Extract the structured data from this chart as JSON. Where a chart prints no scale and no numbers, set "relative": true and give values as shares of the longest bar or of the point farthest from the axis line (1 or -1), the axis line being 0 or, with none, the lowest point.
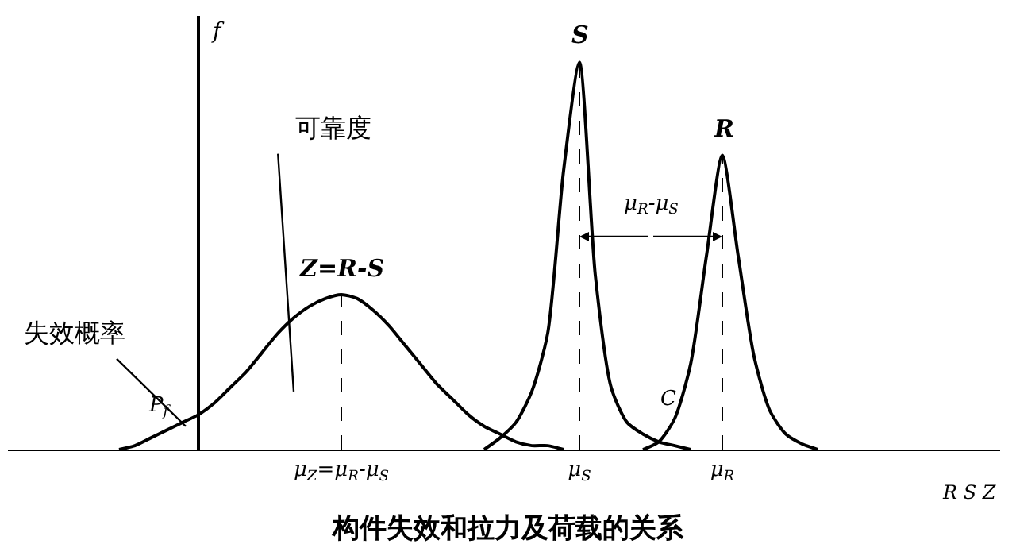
{
  "chart_data": {
    "type": "line",
    "relative": true,
    "title": "构件失效和拉力及荷载的关系",
    "xlabel": "R S Z",
    "ylabel": "f",
    "categories": [
      null,
      null,
      null,
      null,
      null,
      null,
      null,
      null,
      null,
      null,
      null,
      null,
      null,
      null,
      null,
      null,
      "μ$_{Z}$=μ$_{R}$-μ$_{S}$",
      null,
      null,
      null,
      null,
      null,
      null,
      null,
      null,
      null,
      null,
      null,
      null,
      null,
      null,
      "μ$_{S}$",
      null,
      null,
      null,
      null,
      null,
      null,
      null,
      null,
      "μ$_{R}$",
      null,
      null,
      null,
      null,
      null,
      null,
      null,
      null,
      null,
      null,
      null,
      null,
      null,
      null,
      null,
      null,
      null
    ],
    "series": [
      {
        "name": "Z=R-S",
        "color": "#000000",
        "values": [
          null,
          null,
          0,
          0.01,
          0.03,
          0.05,
          0.07,
          0.09,
          0.12,
          0.16,
          0.2,
          0.25,
          0.3,
          0.34,
          0.37,
          0.39,
          0.4,
          0.39,
          0.36,
          0.32,
          0.27,
          0.22,
          0.17,
          0.13,
          0.09,
          0.06,
          0.04,
          0.02,
          0.01,
          0.01,
          0,
          null,
          null,
          null,
          null,
          null,
          null,
          null,
          null,
          null,
          null,
          null,
          null,
          null,
          null,
          null,
          null,
          null,
          null,
          null,
          null,
          null,
          null,
          null,
          null,
          null,
          null,
          null
        ]
      },
      {
        "name": "S",
        "color": "#000000",
        "values": [
          null,
          null,
          null,
          null,
          null,
          null,
          null,
          null,
          null,
          null,
          null,
          null,
          null,
          null,
          null,
          null,
          null,
          null,
          null,
          null,
          null,
          null,
          null,
          null,
          null,
          0,
          0.03,
          0.07,
          0.15,
          0.3,
          0.72,
          1,
          0.45,
          0.16,
          0.07,
          0.04,
          0.02,
          0.01,
          0,
          null,
          null,
          null,
          null,
          null,
          null,
          null,
          null,
          null,
          null,
          null,
          null,
          null,
          null,
          null,
          null,
          null,
          null,
          null
        ]
      },
      {
        "name": "R",
        "color": "#000000",
        "values": [
          null,
          null,
          null,
          null,
          null,
          null,
          null,
          null,
          null,
          null,
          null,
          null,
          null,
          null,
          null,
          null,
          null,
          null,
          null,
          null,
          null,
          null,
          null,
          null,
          null,
          null,
          null,
          null,
          null,
          null,
          null,
          null,
          null,
          null,
          null,
          0,
          0.02,
          0.08,
          0.22,
          0.5,
          0.76,
          0.5,
          0.24,
          0.1,
          0.04,
          0.015,
          0,
          null,
          null,
          null,
          null,
          null,
          null,
          null,
          null,
          null,
          null,
          null
        ]
      }
    ],
    "ref_lines": [
      {
        "axis": "x",
        "value": "μ$_{Z}$=μ$_{R}$-μ$_{S}$",
        "line_style": "dashed",
        "color": "#000000"
      },
      {
        "axis": "x",
        "value": "μ$_{S}$",
        "line_style": "dashed",
        "color": "#000000"
      },
      {
        "axis": "x",
        "value": "μ$_{R}$",
        "line_style": "dashed",
        "color": "#000000"
      }
    ],
    "annotations": [
      "可靠度",
      "失效概率",
      "P$_{f}$",
      "C",
      "μ$_{R}$-μ$_{S}$"
    ],
    "legend": false,
    "grid": false,
    "marker": "none",
    "line_style": "solid"
  }
}
